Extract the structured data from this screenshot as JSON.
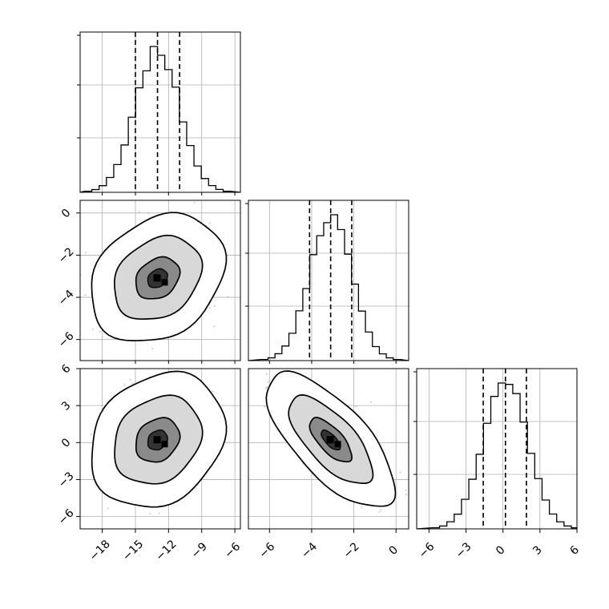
{
  "chart_data": {
    "type": "corner",
    "title": "",
    "params": [
      {
        "mean": -13.0,
        "std": 2.0,
        "quantiles": [
          -15.0,
          -13.0,
          -11.0
        ],
        "range": [
          -20,
          -5.5
        ],
        "ticks": [
          -18,
          -15,
          -12,
          -9,
          -6
        ],
        "tick_labels": [
          "−18",
          "−15",
          "−12",
          "−9",
          "−6"
        ]
      },
      {
        "mean": -3.1,
        "std": 1.0,
        "quantiles": [
          -4.1,
          -3.1,
          -2.1
        ],
        "range": [
          -7.0,
          0.6
        ],
        "ticks": [
          -6,
          -4,
          -2,
          0
        ],
        "tick_labels": [
          "−6",
          "−4",
          "−2",
          "0"
        ]
      },
      {
        "mean": 0.2,
        "std": 1.8,
        "quantiles": [
          -1.6,
          0.2,
          1.9
        ],
        "range": [
          -7.0,
          6.0
        ],
        "ticks": [
          -6,
          -3,
          0,
          3,
          6
        ],
        "tick_labels": [
          "−6",
          "−3",
          "0",
          "3",
          "6"
        ]
      }
    ],
    "correlations": {
      "1-0": 0.25,
      "2-0": 0.2,
      "2-1": -0.7
    },
    "histogram_bins": 20,
    "contour_levels": [
      0.39,
      0.86,
      0.99
    ],
    "grid": true,
    "colors": {
      "line": "#000000",
      "scatter": "#999999",
      "grid": "#b0b0b0"
    }
  }
}
